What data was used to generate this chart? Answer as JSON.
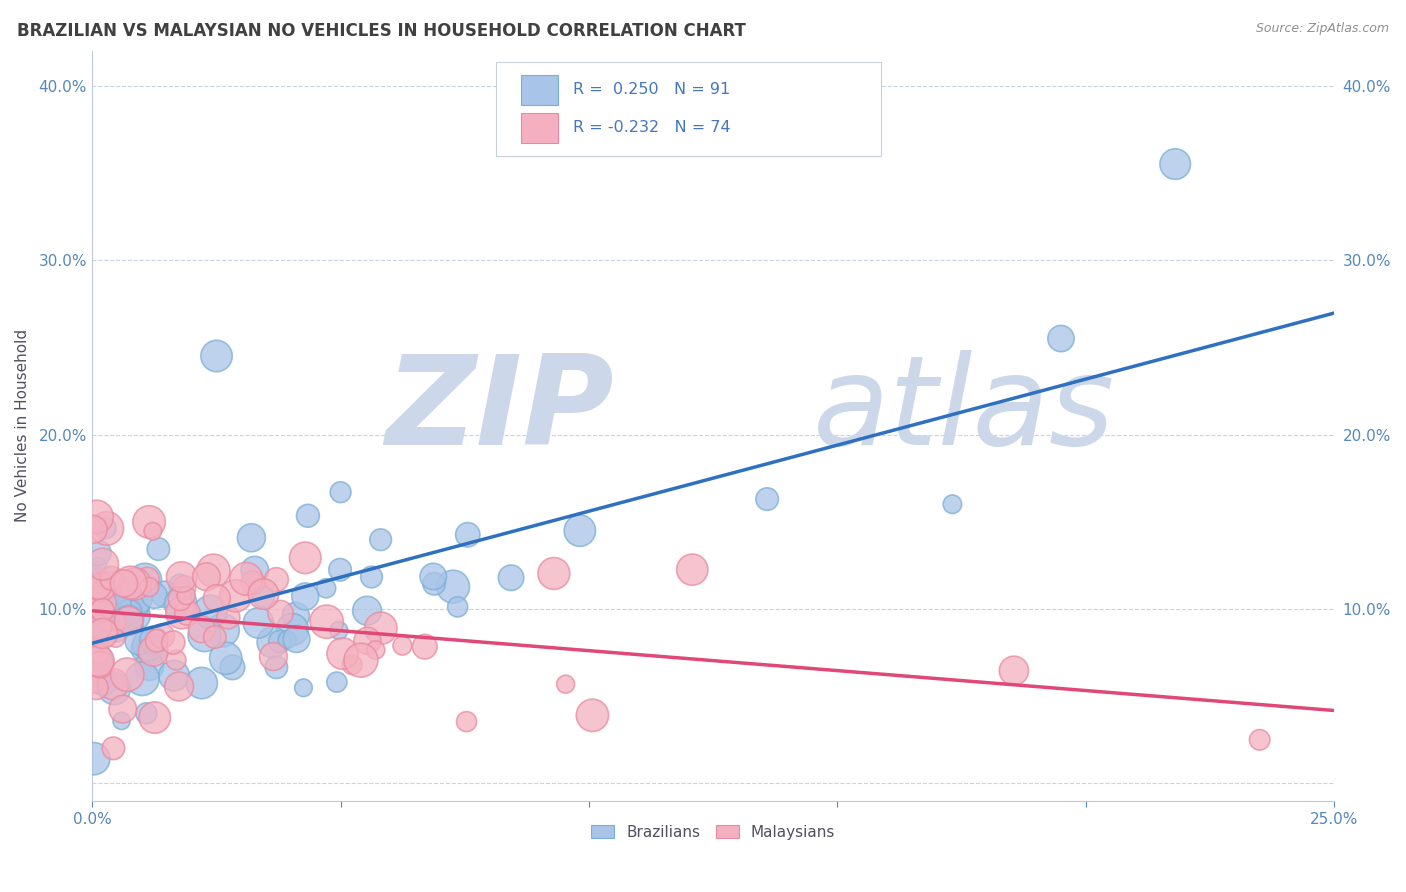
{
  "title": "BRAZILIAN VS MALAYSIAN NO VEHICLES IN HOUSEHOLD CORRELATION CHART",
  "source": "Source: ZipAtlas.com",
  "ylabel": "No Vehicles in Household",
  "xlim": [
    0.0,
    0.25
  ],
  "ylim": [
    -0.01,
    0.42
  ],
  "legend_r_brazilian": "0.250",
  "legend_n_brazilian": "91",
  "legend_r_malaysian": "-0.232",
  "legend_n_malaysian": "74",
  "color_brazilian": "#a8c4e8",
  "color_malaysian": "#f4b0c0",
  "edge_color_brazilian": "#7bafd4",
  "edge_color_malaysian": "#e88aa0",
  "line_color_brazilian": "#3070c0",
  "line_color_malaysian": "#e04878",
  "watermark_zip": "ZIP",
  "watermark_atlas": "atlas",
  "watermark_color": "#ccd8ea",
  "background_color": "#ffffff",
  "grid_color": "#c8d4e4",
  "title_color": "#404040",
  "axis_label_color": "#505060",
  "tick_color": "#5588bb",
  "legend_text_color": "#4477bb"
}
